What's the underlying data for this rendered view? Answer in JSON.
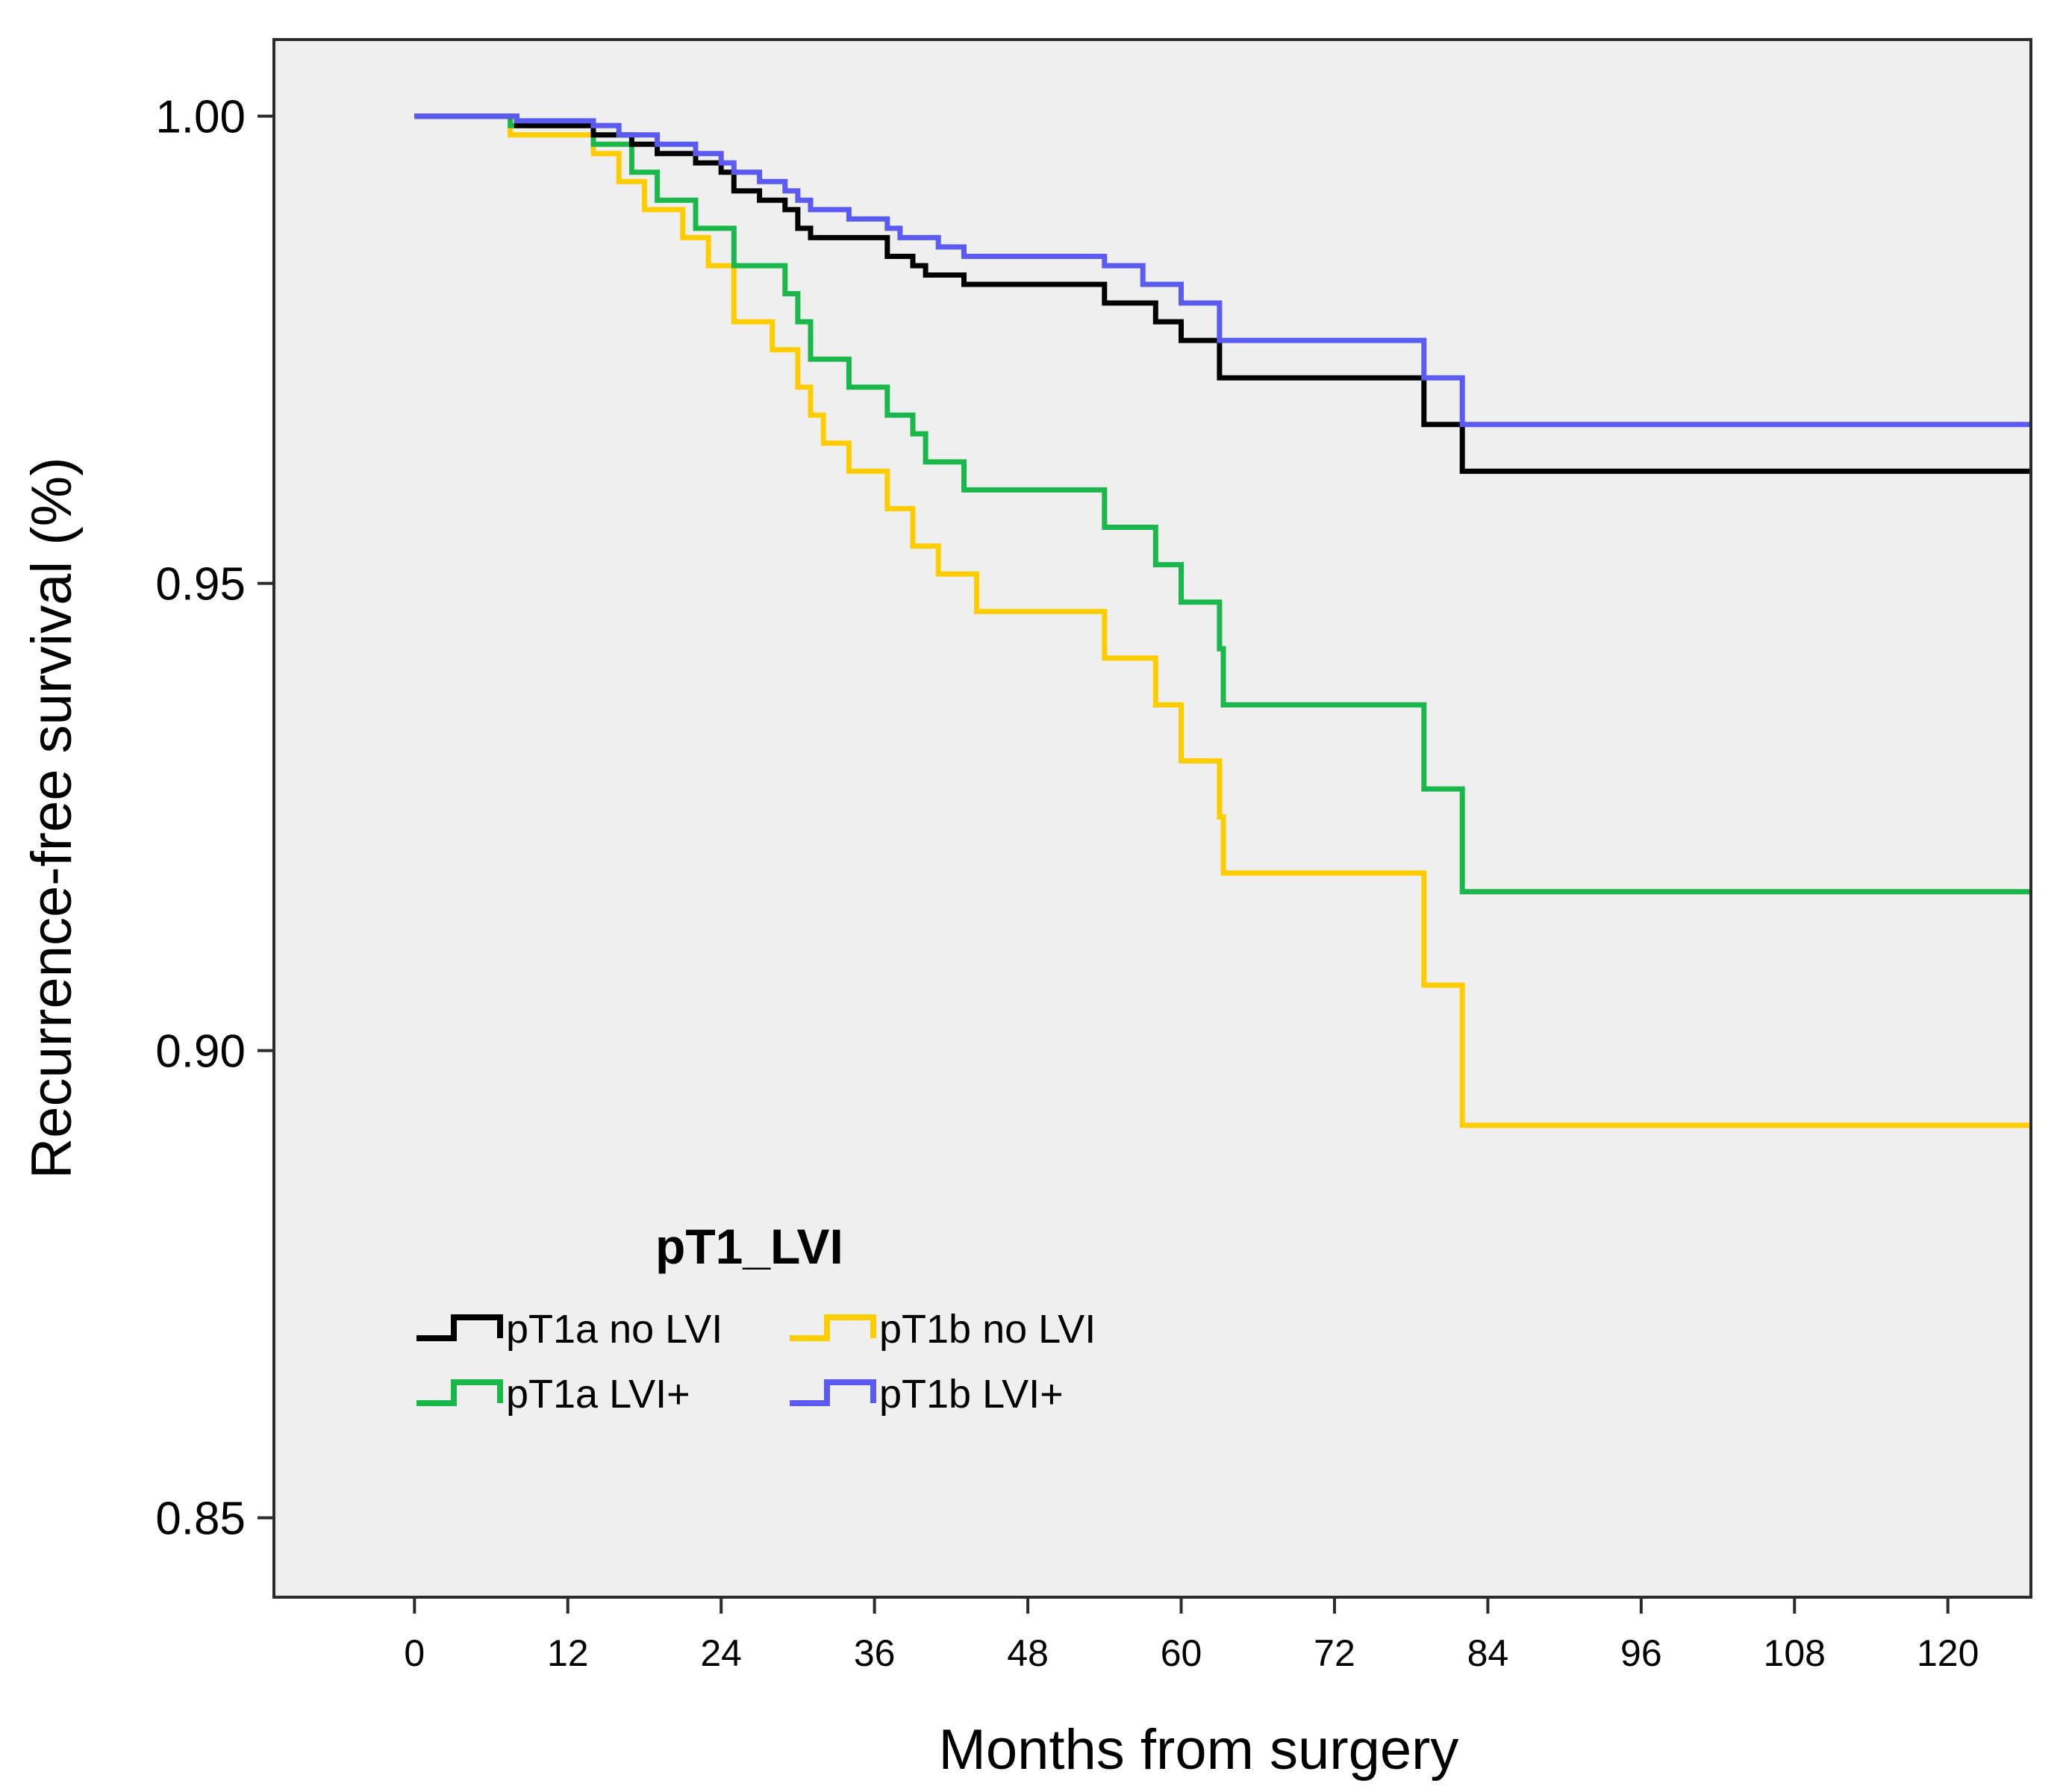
{
  "chart_data": {
    "type": "line",
    "subtype": "kaplan-meier step",
    "xlabel": "Months from surgery",
    "ylabel": "Recurrence-free survival (%)",
    "xlim": [
      -11,
      126.5
    ],
    "ylim": [
      0.8415,
      1.0082
    ],
    "x_ticks": [
      0,
      12,
      24,
      36,
      48,
      60,
      72,
      84,
      96,
      108,
      120
    ],
    "x_tick_labels": [
      "0",
      "12",
      "24",
      "36",
      "48",
      "60",
      "72",
      "84",
      "96",
      "108",
      "120"
    ],
    "y_ticks": [
      1.0,
      0.95,
      0.9,
      0.85
    ],
    "y_tick_labels": [
      "1.00",
      "0.95",
      "0.90",
      "0.85"
    ],
    "grid": false,
    "background": "#efefef",
    "legend": {
      "title": "pT1_LVI",
      "position": "bottom-left",
      "entries": [
        "pT1a no LVI",
        "pT1b no LVI",
        "pT1a LVI+",
        "pT1b LVI+"
      ]
    },
    "series": [
      {
        "name": "pT1a no LVI",
        "color": "#000000",
        "points": [
          [
            0,
            1.0
          ],
          [
            8,
            1.0
          ],
          [
            8,
            0.999
          ],
          [
            14,
            0.999
          ],
          [
            14,
            0.998
          ],
          [
            17,
            0.998
          ],
          [
            17,
            0.997
          ],
          [
            19,
            0.997
          ],
          [
            19,
            0.996
          ],
          [
            22,
            0.996
          ],
          [
            22,
            0.995
          ],
          [
            24,
            0.995
          ],
          [
            24,
            0.994
          ],
          [
            25,
            0.994
          ],
          [
            25,
            0.992
          ],
          [
            27,
            0.992
          ],
          [
            27,
            0.991
          ],
          [
            29,
            0.991
          ],
          [
            29,
            0.99
          ],
          [
            30,
            0.99
          ],
          [
            30,
            0.988
          ],
          [
            31,
            0.988
          ],
          [
            31,
            0.987
          ],
          [
            37,
            0.987
          ],
          [
            37,
            0.985
          ],
          [
            39,
            0.985
          ],
          [
            39,
            0.984
          ],
          [
            40,
            0.984
          ],
          [
            40,
            0.983
          ],
          [
            43,
            0.983
          ],
          [
            43,
            0.982
          ],
          [
            54,
            0.982
          ],
          [
            54,
            0.98
          ],
          [
            58,
            0.98
          ],
          [
            58,
            0.978
          ],
          [
            60,
            0.978
          ],
          [
            60,
            0.976
          ],
          [
            63,
            0.976
          ],
          [
            63,
            0.972
          ],
          [
            79,
            0.972
          ],
          [
            79,
            0.967
          ],
          [
            82,
            0.967
          ],
          [
            82,
            0.962
          ],
          [
            126.5,
            0.962
          ]
        ]
      },
      {
        "name": "pT1b no LVI",
        "color": "#ffcc00",
        "points": [
          [
            0,
            1.0
          ],
          [
            7.5,
            1.0
          ],
          [
            7.5,
            0.998
          ],
          [
            14,
            0.998
          ],
          [
            14,
            0.996
          ],
          [
            16,
            0.996
          ],
          [
            16,
            0.993
          ],
          [
            18,
            0.993
          ],
          [
            18,
            0.99
          ],
          [
            21,
            0.99
          ],
          [
            21,
            0.987
          ],
          [
            23,
            0.987
          ],
          [
            23,
            0.984
          ],
          [
            25,
            0.984
          ],
          [
            25,
            0.978
          ],
          [
            28,
            0.978
          ],
          [
            28,
            0.975
          ],
          [
            30,
            0.975
          ],
          [
            30,
            0.971
          ],
          [
            31,
            0.971
          ],
          [
            31,
            0.968
          ],
          [
            32,
            0.968
          ],
          [
            32,
            0.965
          ],
          [
            34,
            0.965
          ],
          [
            34,
            0.962
          ],
          [
            37,
            0.962
          ],
          [
            37,
            0.958
          ],
          [
            39,
            0.958
          ],
          [
            39,
            0.954
          ],
          [
            41,
            0.954
          ],
          [
            41,
            0.951
          ],
          [
            44,
            0.951
          ],
          [
            44,
            0.947
          ],
          [
            54,
            0.947
          ],
          [
            54,
            0.942
          ],
          [
            58,
            0.942
          ],
          [
            58,
            0.937
          ],
          [
            60,
            0.937
          ],
          [
            60,
            0.931
          ],
          [
            63,
            0.931
          ],
          [
            63,
            0.925
          ],
          [
            63.3,
            0.925
          ],
          [
            63.3,
            0.919
          ],
          [
            79,
            0.919
          ],
          [
            79,
            0.907
          ],
          [
            82,
            0.907
          ],
          [
            82,
            0.892
          ],
          [
            126.5,
            0.892
          ]
        ]
      },
      {
        "name": "pT1a LVI+",
        "color": "#1ab84a",
        "points": [
          [
            0,
            1.0
          ],
          [
            7.5,
            1.0
          ],
          [
            7.5,
            0.999
          ],
          [
            14,
            0.999
          ],
          [
            14,
            0.997
          ],
          [
            17,
            0.997
          ],
          [
            17,
            0.994
          ],
          [
            19,
            0.994
          ],
          [
            19,
            0.991
          ],
          [
            22,
            0.991
          ],
          [
            22,
            0.988
          ],
          [
            25,
            0.988
          ],
          [
            25,
            0.984
          ],
          [
            29,
            0.984
          ],
          [
            29,
            0.981
          ],
          [
            30,
            0.981
          ],
          [
            30,
            0.978
          ],
          [
            31,
            0.978
          ],
          [
            31,
            0.974
          ],
          [
            34,
            0.974
          ],
          [
            34,
            0.971
          ],
          [
            37,
            0.971
          ],
          [
            37,
            0.968
          ],
          [
            39,
            0.968
          ],
          [
            39,
            0.966
          ],
          [
            40,
            0.966
          ],
          [
            40,
            0.963
          ],
          [
            43,
            0.963
          ],
          [
            43,
            0.96
          ],
          [
            54,
            0.96
          ],
          [
            54,
            0.956
          ],
          [
            58,
            0.956
          ],
          [
            58,
            0.952
          ],
          [
            60,
            0.952
          ],
          [
            60,
            0.948
          ],
          [
            63,
            0.948
          ],
          [
            63,
            0.943
          ],
          [
            63.3,
            0.943
          ],
          [
            63.3,
            0.937
          ],
          [
            79,
            0.937
          ],
          [
            79,
            0.928
          ],
          [
            82,
            0.928
          ],
          [
            82,
            0.917
          ],
          [
            126.5,
            0.917
          ]
        ]
      },
      {
        "name": "pT1b LVI+",
        "color": "#5b5bf2",
        "points": [
          [
            0,
            1.0
          ],
          [
            8,
            1.0
          ],
          [
            8,
            0.9995
          ],
          [
            14,
            0.9995
          ],
          [
            14,
            0.999
          ],
          [
            16,
            0.999
          ],
          [
            16,
            0.998
          ],
          [
            19,
            0.998
          ],
          [
            19,
            0.997
          ],
          [
            22,
            0.997
          ],
          [
            22,
            0.996
          ],
          [
            24,
            0.996
          ],
          [
            24,
            0.995
          ],
          [
            25,
            0.995
          ],
          [
            25,
            0.994
          ],
          [
            27,
            0.994
          ],
          [
            27,
            0.993
          ],
          [
            29,
            0.993
          ],
          [
            29,
            0.992
          ],
          [
            30,
            0.992
          ],
          [
            30,
            0.991
          ],
          [
            31,
            0.991
          ],
          [
            31,
            0.99
          ],
          [
            34,
            0.99
          ],
          [
            34,
            0.989
          ],
          [
            37,
            0.989
          ],
          [
            37,
            0.988
          ],
          [
            38,
            0.988
          ],
          [
            38,
            0.987
          ],
          [
            41,
            0.987
          ],
          [
            41,
            0.986
          ],
          [
            43,
            0.986
          ],
          [
            43,
            0.985
          ],
          [
            54,
            0.985
          ],
          [
            54,
            0.984
          ],
          [
            57,
            0.984
          ],
          [
            57,
            0.982
          ],
          [
            60,
            0.982
          ],
          [
            60,
            0.98
          ],
          [
            63,
            0.98
          ],
          [
            63,
            0.976
          ],
          [
            79,
            0.976
          ],
          [
            79,
            0.972
          ],
          [
            82,
            0.972
          ],
          [
            82,
            0.967
          ],
          [
            126.5,
            0.967
          ]
        ]
      }
    ]
  }
}
